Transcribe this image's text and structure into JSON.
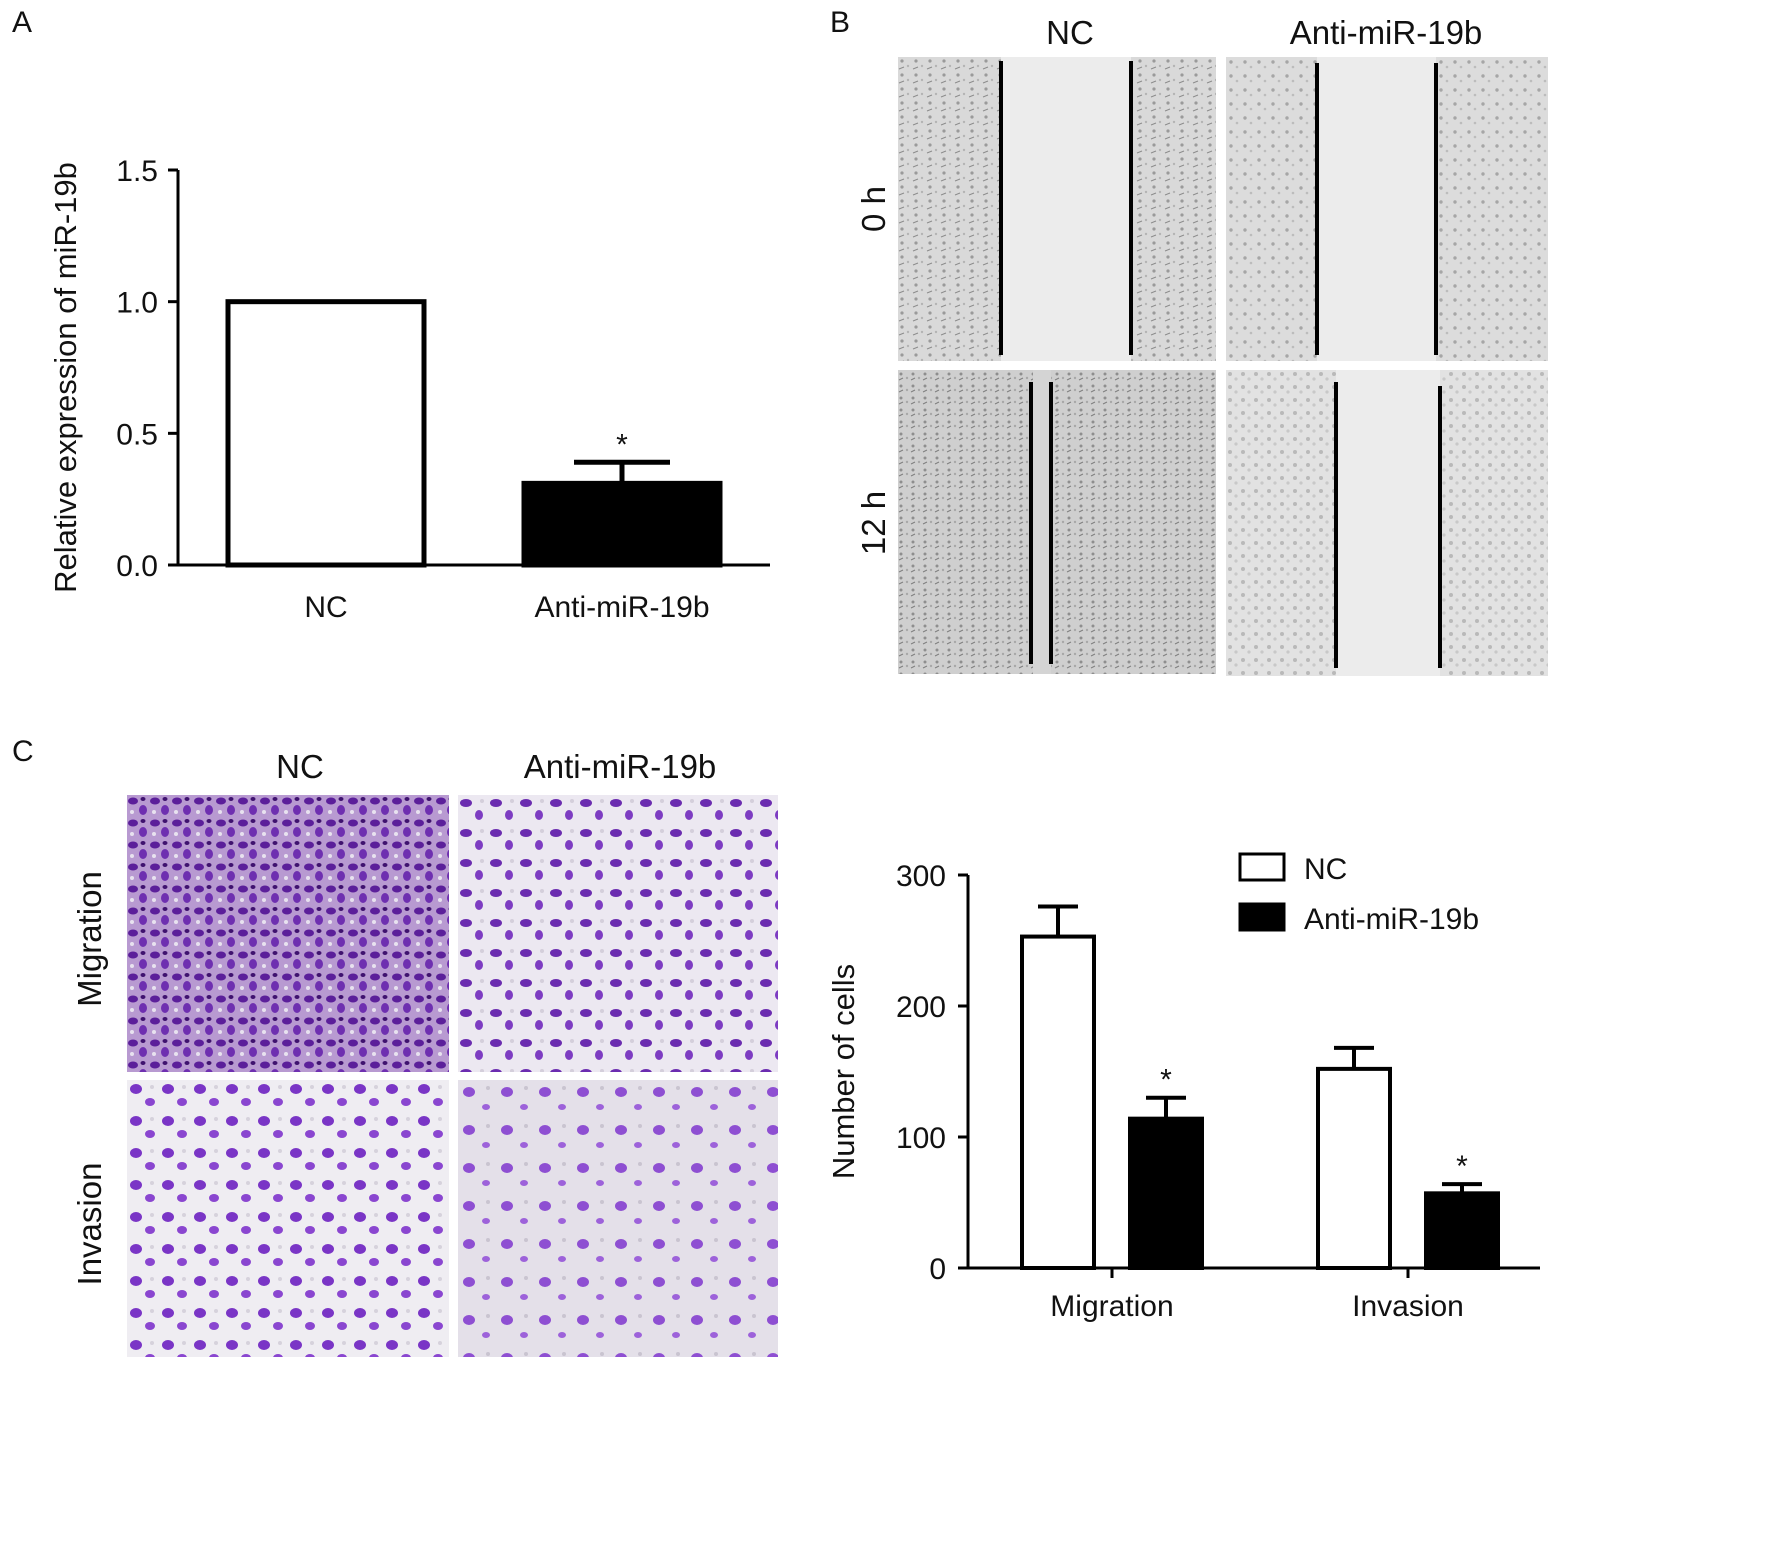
{
  "panels": {
    "a": "A",
    "b": "B",
    "c": "C"
  },
  "wound": {
    "columns": [
      "NC",
      "Anti-miR-19b"
    ],
    "rows": [
      "0 h",
      "12 h"
    ]
  },
  "transwell": {
    "columns": [
      "NC",
      "Anti-miR-19b"
    ],
    "rows": [
      "Migration",
      "Invasion"
    ]
  },
  "chart_data": [
    {
      "type": "bar",
      "panel": "A",
      "categories": [
        "NC",
        "Anti-miR-19b"
      ],
      "values": [
        1.0,
        0.31
      ],
      "errors": [
        0,
        0.08
      ],
      "significance": [
        "",
        "*"
      ],
      "colors": [
        "#ffffff",
        "#000000"
      ],
      "ylabel": "Relative expression of miR-19b",
      "ylim": [
        0,
        1.5
      ],
      "yticks": [
        "0.0",
        "0.5",
        "1.0",
        "1.5"
      ],
      "grid": false
    },
    {
      "type": "bar",
      "panel": "C",
      "categories": [
        "Migration",
        "Invasion"
      ],
      "series": [
        {
          "name": "NC",
          "color": "#ffffff",
          "values": [
            253,
            152
          ],
          "errors": [
            23,
            16
          ],
          "significance": [
            "",
            ""
          ]
        },
        {
          "name": "Anti-miR-19b",
          "color": "#000000",
          "values": [
            114,
            57
          ],
          "errors": [
            16,
            7
          ],
          "significance": [
            "*",
            "*"
          ]
        }
      ],
      "ylabel": "Number of cells",
      "ylim": [
        0,
        300
      ],
      "yticks": [
        "0",
        "100",
        "200",
        "300"
      ],
      "legend": "top-right",
      "grid": false
    }
  ]
}
